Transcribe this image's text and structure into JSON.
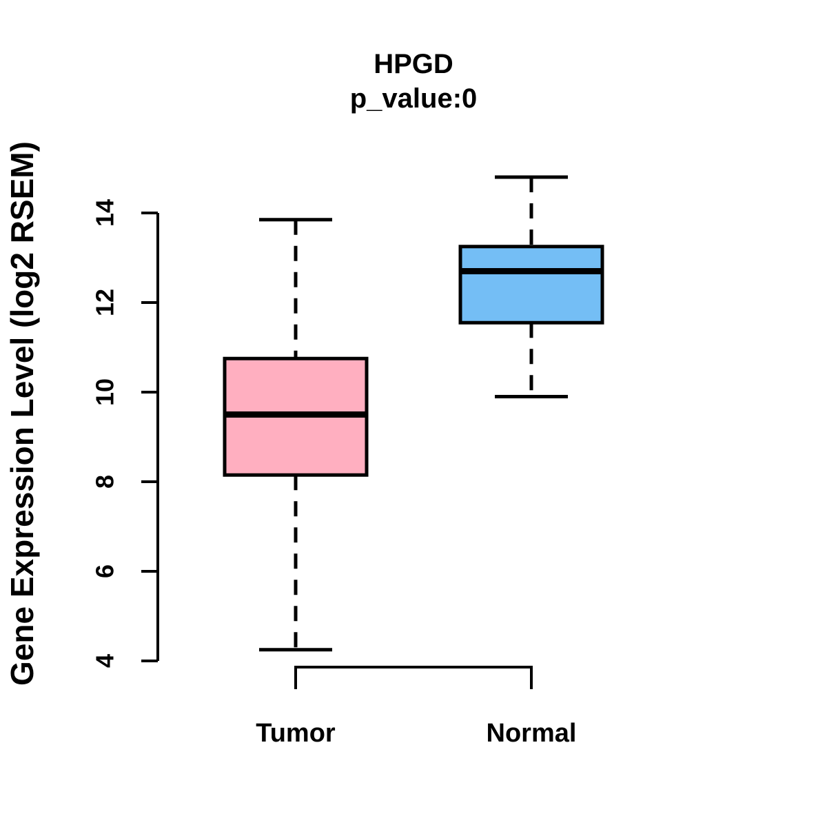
{
  "title": "HPGD",
  "subtitle": "p_value:0",
  "ylabel": "Gene Expression Level (log2 RSEM)",
  "colors": {
    "tumor_fill": "#ffafc0",
    "normal_fill": "#74bef5",
    "line": "#000000",
    "background": "#ffffff"
  },
  "chart_data": {
    "type": "boxplot",
    "title": "HPGD",
    "subtitle": "p_value:0",
    "xlabel": "",
    "ylabel": "Gene Expression Level (log2 RSEM)",
    "categories": [
      "Tumor",
      "Normal"
    ],
    "yticks": [
      4,
      6,
      8,
      10,
      12,
      14
    ],
    "ylim": [
      4,
      14.8
    ],
    "grid": false,
    "legend_position": "none",
    "series": [
      {
        "name": "Tumor",
        "color": "#ffafc0",
        "lower_whisker": 4.25,
        "q1": 8.15,
        "median": 9.5,
        "q3": 10.75,
        "upper_whisker": 13.85,
        "outliers": []
      },
      {
        "name": "Normal",
        "color": "#74bef5",
        "lower_whisker": 9.9,
        "q1": 11.55,
        "median": 12.7,
        "q3": 13.25,
        "upper_whisker": 14.8,
        "outliers": []
      }
    ]
  }
}
